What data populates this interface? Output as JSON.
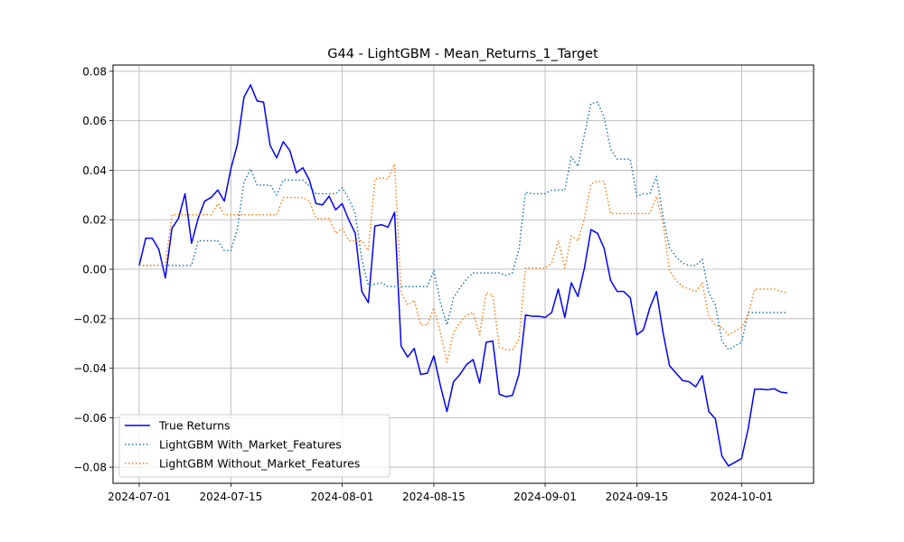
{
  "chart_data": {
    "type": "line",
    "title": "G44 - LightGBM - Mean_Returns_1_Target",
    "xlabel": "",
    "ylabel": "",
    "grid": true,
    "legend_position": "lower-left",
    "x_ticks": [
      "2024-07-01",
      "2024-07-15",
      "2024-08-01",
      "2024-08-15",
      "2024-09-01",
      "2024-09-15",
      "2024-10-01"
    ],
    "y_ticks": [
      "−0.08",
      "−0.06",
      "−0.04",
      "−0.02",
      "0.00",
      "0.02",
      "0.04",
      "0.06",
      "0.08"
    ],
    "xlim": [
      "2024-06-27",
      "2024-10-12"
    ],
    "ylim": [
      -0.0865,
      0.0825
    ],
    "series": [
      {
        "name": "True Returns",
        "color": "#0000ff",
        "style": "solid",
        "points": [
          [
            "2024-07-01",
            0.0015
          ],
          [
            "2024-07-02",
            0.0125
          ],
          [
            "2024-07-03",
            0.0125
          ],
          [
            "2024-07-04",
            0.008
          ],
          [
            "2024-07-05",
            -0.0035
          ],
          [
            "2024-07-06",
            0.0165
          ],
          [
            "2024-07-07",
            0.0205
          ],
          [
            "2024-07-08",
            0.0305
          ],
          [
            "2024-07-09",
            0.0105
          ],
          [
            "2024-07-10",
            0.0205
          ],
          [
            "2024-07-11",
            0.0275
          ],
          [
            "2024-07-12",
            0.029
          ],
          [
            "2024-07-13",
            0.032
          ],
          [
            "2024-07-14",
            0.0275
          ],
          [
            "2024-07-15",
            0.0405
          ],
          [
            "2024-07-16",
            0.0505
          ],
          [
            "2024-07-17",
            0.0695
          ],
          [
            "2024-07-18",
            0.0745
          ],
          [
            "2024-07-19",
            0.068
          ],
          [
            "2024-07-20",
            0.0675
          ],
          [
            "2024-07-21",
            0.05
          ],
          [
            "2024-07-22",
            0.045
          ],
          [
            "2024-07-23",
            0.0515
          ],
          [
            "2024-07-24",
            0.048
          ],
          [
            "2024-07-25",
            0.039
          ],
          [
            "2024-07-26",
            0.041
          ],
          [
            "2024-07-27",
            0.036
          ],
          [
            "2024-07-28",
            0.0265
          ],
          [
            "2024-07-29",
            0.026
          ],
          [
            "2024-07-30",
            0.0295
          ],
          [
            "2024-07-31",
            0.024
          ],
          [
            "2024-08-01",
            0.0265
          ],
          [
            "2024-08-02",
            0.02
          ],
          [
            "2024-08-03",
            0.0145
          ],
          [
            "2024-08-04",
            -0.009
          ],
          [
            "2024-08-05",
            -0.0135
          ],
          [
            "2024-08-06",
            0.0175
          ],
          [
            "2024-08-07",
            0.018
          ],
          [
            "2024-08-08",
            0.017
          ],
          [
            "2024-08-09",
            0.023
          ],
          [
            "2024-08-10",
            -0.031
          ],
          [
            "2024-08-11",
            -0.0355
          ],
          [
            "2024-08-12",
            -0.032
          ],
          [
            "2024-08-13",
            -0.0425
          ],
          [
            "2024-08-14",
            -0.042
          ],
          [
            "2024-08-15",
            -0.035
          ],
          [
            "2024-08-16",
            -0.047
          ],
          [
            "2024-08-17",
            -0.0575
          ],
          [
            "2024-08-18",
            -0.0455
          ],
          [
            "2024-08-19",
            -0.0425
          ],
          [
            "2024-08-20",
            -0.0385
          ],
          [
            "2024-08-21",
            -0.0365
          ],
          [
            "2024-08-22",
            -0.046
          ],
          [
            "2024-08-23",
            -0.0295
          ],
          [
            "2024-08-24",
            -0.029
          ],
          [
            "2024-08-25",
            -0.0505
          ],
          [
            "2024-08-26",
            -0.0515
          ],
          [
            "2024-08-27",
            -0.051
          ],
          [
            "2024-08-28",
            -0.0425
          ],
          [
            "2024-08-29",
            -0.0185
          ],
          [
            "2024-08-30",
            -0.019
          ],
          [
            "2024-08-31",
            -0.019
          ],
          [
            "2024-09-01",
            -0.0195
          ],
          [
            "2024-09-02",
            -0.0175
          ],
          [
            "2024-09-03",
            -0.008
          ],
          [
            "2024-09-04",
            -0.0195
          ],
          [
            "2024-09-05",
            -0.0055
          ],
          [
            "2024-09-06",
            -0.011
          ],
          [
            "2024-09-07",
            0.0005
          ],
          [
            "2024-09-08",
            0.016
          ],
          [
            "2024-09-09",
            0.0145
          ],
          [
            "2024-09-10",
            0.0085
          ],
          [
            "2024-09-11",
            -0.0045
          ],
          [
            "2024-09-12",
            -0.009
          ],
          [
            "2024-09-13",
            -0.009
          ],
          [
            "2024-09-14",
            -0.0115
          ],
          [
            "2024-09-15",
            -0.0265
          ],
          [
            "2024-09-16",
            -0.0245
          ],
          [
            "2024-09-17",
            -0.0155
          ],
          [
            "2024-09-18",
            -0.009
          ],
          [
            "2024-09-19",
            -0.0255
          ],
          [
            "2024-09-20",
            -0.039
          ],
          [
            "2024-09-21",
            -0.042
          ],
          [
            "2024-09-22",
            -0.045
          ],
          [
            "2024-09-23",
            -0.0455
          ],
          [
            "2024-09-24",
            -0.0475
          ],
          [
            "2024-09-25",
            -0.043
          ],
          [
            "2024-09-26",
            -0.0575
          ],
          [
            "2024-09-27",
            -0.0605
          ],
          [
            "2024-09-28",
            -0.0755
          ],
          [
            "2024-09-29",
            -0.0795
          ],
          [
            "2024-09-30",
            -0.078
          ],
          [
            "2024-10-01",
            -0.0765
          ],
          [
            "2024-10-02",
            -0.0645
          ],
          [
            "2024-10-03",
            -0.0485
          ],
          [
            "2024-10-04",
            -0.0485
          ],
          [
            "2024-10-05",
            -0.0487
          ],
          [
            "2024-10-06",
            -0.0483
          ],
          [
            "2024-10-07",
            -0.0497
          ],
          [
            "2024-10-08",
            -0.05
          ]
        ]
      },
      {
        "name": "LightGBM With_Market_Features",
        "color": "#1f77b4",
        "style": "dotted",
        "points": [
          [
            "2024-07-01",
            0.0015
          ],
          [
            "2024-07-09",
            0.0015
          ],
          [
            "2024-07-10",
            0.0115
          ],
          [
            "2024-07-13",
            0.0115
          ],
          [
            "2024-07-14",
            0.0075
          ],
          [
            "2024-07-15",
            0.0075
          ],
          [
            "2024-07-16",
            0.0165
          ],
          [
            "2024-07-17",
            0.035
          ],
          [
            "2024-07-18",
            0.0405
          ],
          [
            "2024-07-19",
            0.034
          ],
          [
            "2024-07-20",
            0.034
          ],
          [
            "2024-07-21",
            0.034
          ],
          [
            "2024-07-22",
            0.03
          ],
          [
            "2024-07-23",
            0.036
          ],
          [
            "2024-07-26",
            0.036
          ],
          [
            "2024-07-27",
            0.0335
          ],
          [
            "2024-07-28",
            0.0305
          ],
          [
            "2024-07-31",
            0.0305
          ],
          [
            "2024-08-01",
            0.033
          ],
          [
            "2024-08-02",
            0.0285
          ],
          [
            "2024-08-03",
            0.0225
          ],
          [
            "2024-08-04",
            0.004
          ],
          [
            "2024-08-05",
            -0.0065
          ],
          [
            "2024-08-06",
            -0.006
          ],
          [
            "2024-08-07",
            -0.0055
          ],
          [
            "2024-08-08",
            -0.007
          ],
          [
            "2024-08-14",
            -0.007
          ],
          [
            "2024-08-15",
            -0.0005
          ],
          [
            "2024-08-16",
            -0.0135
          ],
          [
            "2024-08-17",
            -0.0225
          ],
          [
            "2024-08-18",
            -0.0115
          ],
          [
            "2024-08-19",
            -0.0075
          ],
          [
            "2024-08-20",
            -0.004
          ],
          [
            "2024-08-21",
            -0.0015
          ],
          [
            "2024-08-25",
            -0.0015
          ],
          [
            "2024-08-26",
            -0.0025
          ],
          [
            "2024-08-27",
            -0.0015
          ],
          [
            "2024-08-28",
            0.008
          ],
          [
            "2024-08-29",
            0.031
          ],
          [
            "2024-08-30",
            0.0305
          ],
          [
            "2024-09-01",
            0.0305
          ],
          [
            "2024-09-02",
            0.032
          ],
          [
            "2024-09-04",
            0.032
          ],
          [
            "2024-09-05",
            0.0455
          ],
          [
            "2024-09-06",
            0.0415
          ],
          [
            "2024-09-07",
            0.0545
          ],
          [
            "2024-09-08",
            0.067
          ],
          [
            "2024-09-09",
            0.0675
          ],
          [
            "2024-09-10",
            0.0615
          ],
          [
            "2024-09-11",
            0.0485
          ],
          [
            "2024-09-12",
            0.0445
          ],
          [
            "2024-09-14",
            0.0445
          ],
          [
            "2024-09-15",
            0.0295
          ],
          [
            "2024-09-16",
            0.0305
          ],
          [
            "2024-09-17",
            0.0305
          ],
          [
            "2024-09-18",
            0.0375
          ],
          [
            "2024-09-19",
            0.0215
          ],
          [
            "2024-09-20",
            0.0085
          ],
          [
            "2024-09-21",
            0.005
          ],
          [
            "2024-09-22",
            0.0025
          ],
          [
            "2024-09-23",
            0.0015
          ],
          [
            "2024-09-24",
            0.0015
          ],
          [
            "2024-09-25",
            0.004
          ],
          [
            "2024-09-26",
            -0.0095
          ],
          [
            "2024-09-27",
            -0.0145
          ],
          [
            "2024-09-28",
            -0.029
          ],
          [
            "2024-09-29",
            -0.0325
          ],
          [
            "2024-09-30",
            -0.031
          ],
          [
            "2024-10-01",
            -0.0295
          ],
          [
            "2024-10-02",
            -0.0175
          ],
          [
            "2024-10-08",
            -0.0175
          ]
        ]
      },
      {
        "name": "LightGBM Without_Market_Features",
        "color": "#ff7f0e",
        "style": "dotted",
        "points": [
          [
            "2024-07-01",
            0.0015
          ],
          [
            "2024-07-05",
            0.0015
          ],
          [
            "2024-07-06",
            0.022
          ],
          [
            "2024-07-12",
            0.022
          ],
          [
            "2024-07-13",
            0.0265
          ],
          [
            "2024-07-14",
            0.022
          ],
          [
            "2024-07-22",
            0.022
          ],
          [
            "2024-07-23",
            0.029
          ],
          [
            "2024-07-26",
            0.029
          ],
          [
            "2024-07-27",
            0.0275
          ],
          [
            "2024-07-28",
            0.0205
          ],
          [
            "2024-07-30",
            0.0205
          ],
          [
            "2024-07-31",
            0.0145
          ],
          [
            "2024-08-01",
            0.0165
          ],
          [
            "2024-08-02",
            0.0115
          ],
          [
            "2024-08-03",
            0.0115
          ],
          [
            "2024-08-04",
            0.0115
          ],
          [
            "2024-08-05",
            0.0075
          ],
          [
            "2024-08-06",
            0.0365
          ],
          [
            "2024-08-07",
            0.037
          ],
          [
            "2024-08-08",
            0.0365
          ],
          [
            "2024-08-09",
            0.0425
          ],
          [
            "2024-08-10",
            -0.0095
          ],
          [
            "2024-08-11",
            -0.0145
          ],
          [
            "2024-08-12",
            -0.0125
          ],
          [
            "2024-08-13",
            -0.0225
          ],
          [
            "2024-08-14",
            -0.0225
          ],
          [
            "2024-08-15",
            -0.0155
          ],
          [
            "2024-08-16",
            -0.0255
          ],
          [
            "2024-08-17",
            -0.0375
          ],
          [
            "2024-08-18",
            -0.0255
          ],
          [
            "2024-08-19",
            -0.0215
          ],
          [
            "2024-08-20",
            -0.0185
          ],
          [
            "2024-08-21",
            -0.0175
          ],
          [
            "2024-08-22",
            -0.0265
          ],
          [
            "2024-08-23",
            -0.0095
          ],
          [
            "2024-08-24",
            -0.0105
          ],
          [
            "2024-08-25",
            -0.0315
          ],
          [
            "2024-08-26",
            -0.0325
          ],
          [
            "2024-08-27",
            -0.0325
          ],
          [
            "2024-08-28",
            -0.0285
          ],
          [
            "2024-08-29",
            0.0005
          ],
          [
            "2024-08-30",
            0.0005
          ],
          [
            "2024-09-01",
            0.0005
          ],
          [
            "2024-09-02",
            0.0025
          ],
          [
            "2024-09-03",
            0.0115
          ],
          [
            "2024-09-04",
            0.0005
          ],
          [
            "2024-09-05",
            0.0135
          ],
          [
            "2024-09-06",
            0.0115
          ],
          [
            "2024-09-07",
            0.0205
          ],
          [
            "2024-09-08",
            0.0345
          ],
          [
            "2024-09-09",
            0.0355
          ],
          [
            "2024-09-10",
            0.0355
          ],
          [
            "2024-09-11",
            0.0225
          ],
          [
            "2024-09-17",
            0.0225
          ],
          [
            "2024-09-18",
            0.0295
          ],
          [
            "2024-09-19",
            0.0185
          ],
          [
            "2024-09-20",
            -0.0005
          ],
          [
            "2024-09-21",
            -0.0045
          ],
          [
            "2024-09-22",
            -0.007
          ],
          [
            "2024-09-23",
            -0.008
          ],
          [
            "2024-09-24",
            -0.009
          ],
          [
            "2024-09-25",
            -0.0055
          ],
          [
            "2024-09-26",
            -0.0195
          ],
          [
            "2024-09-27",
            -0.0225
          ],
          [
            "2024-09-28",
            -0.0235
          ],
          [
            "2024-09-29",
            -0.0265
          ],
          [
            "2024-09-30",
            -0.025
          ],
          [
            "2024-10-01",
            -0.0235
          ],
          [
            "2024-10-02",
            -0.0185
          ],
          [
            "2024-10-03",
            -0.008
          ],
          [
            "2024-10-06",
            -0.008
          ],
          [
            "2024-10-07",
            -0.009
          ],
          [
            "2024-10-08",
            -0.0095
          ]
        ]
      }
    ]
  }
}
